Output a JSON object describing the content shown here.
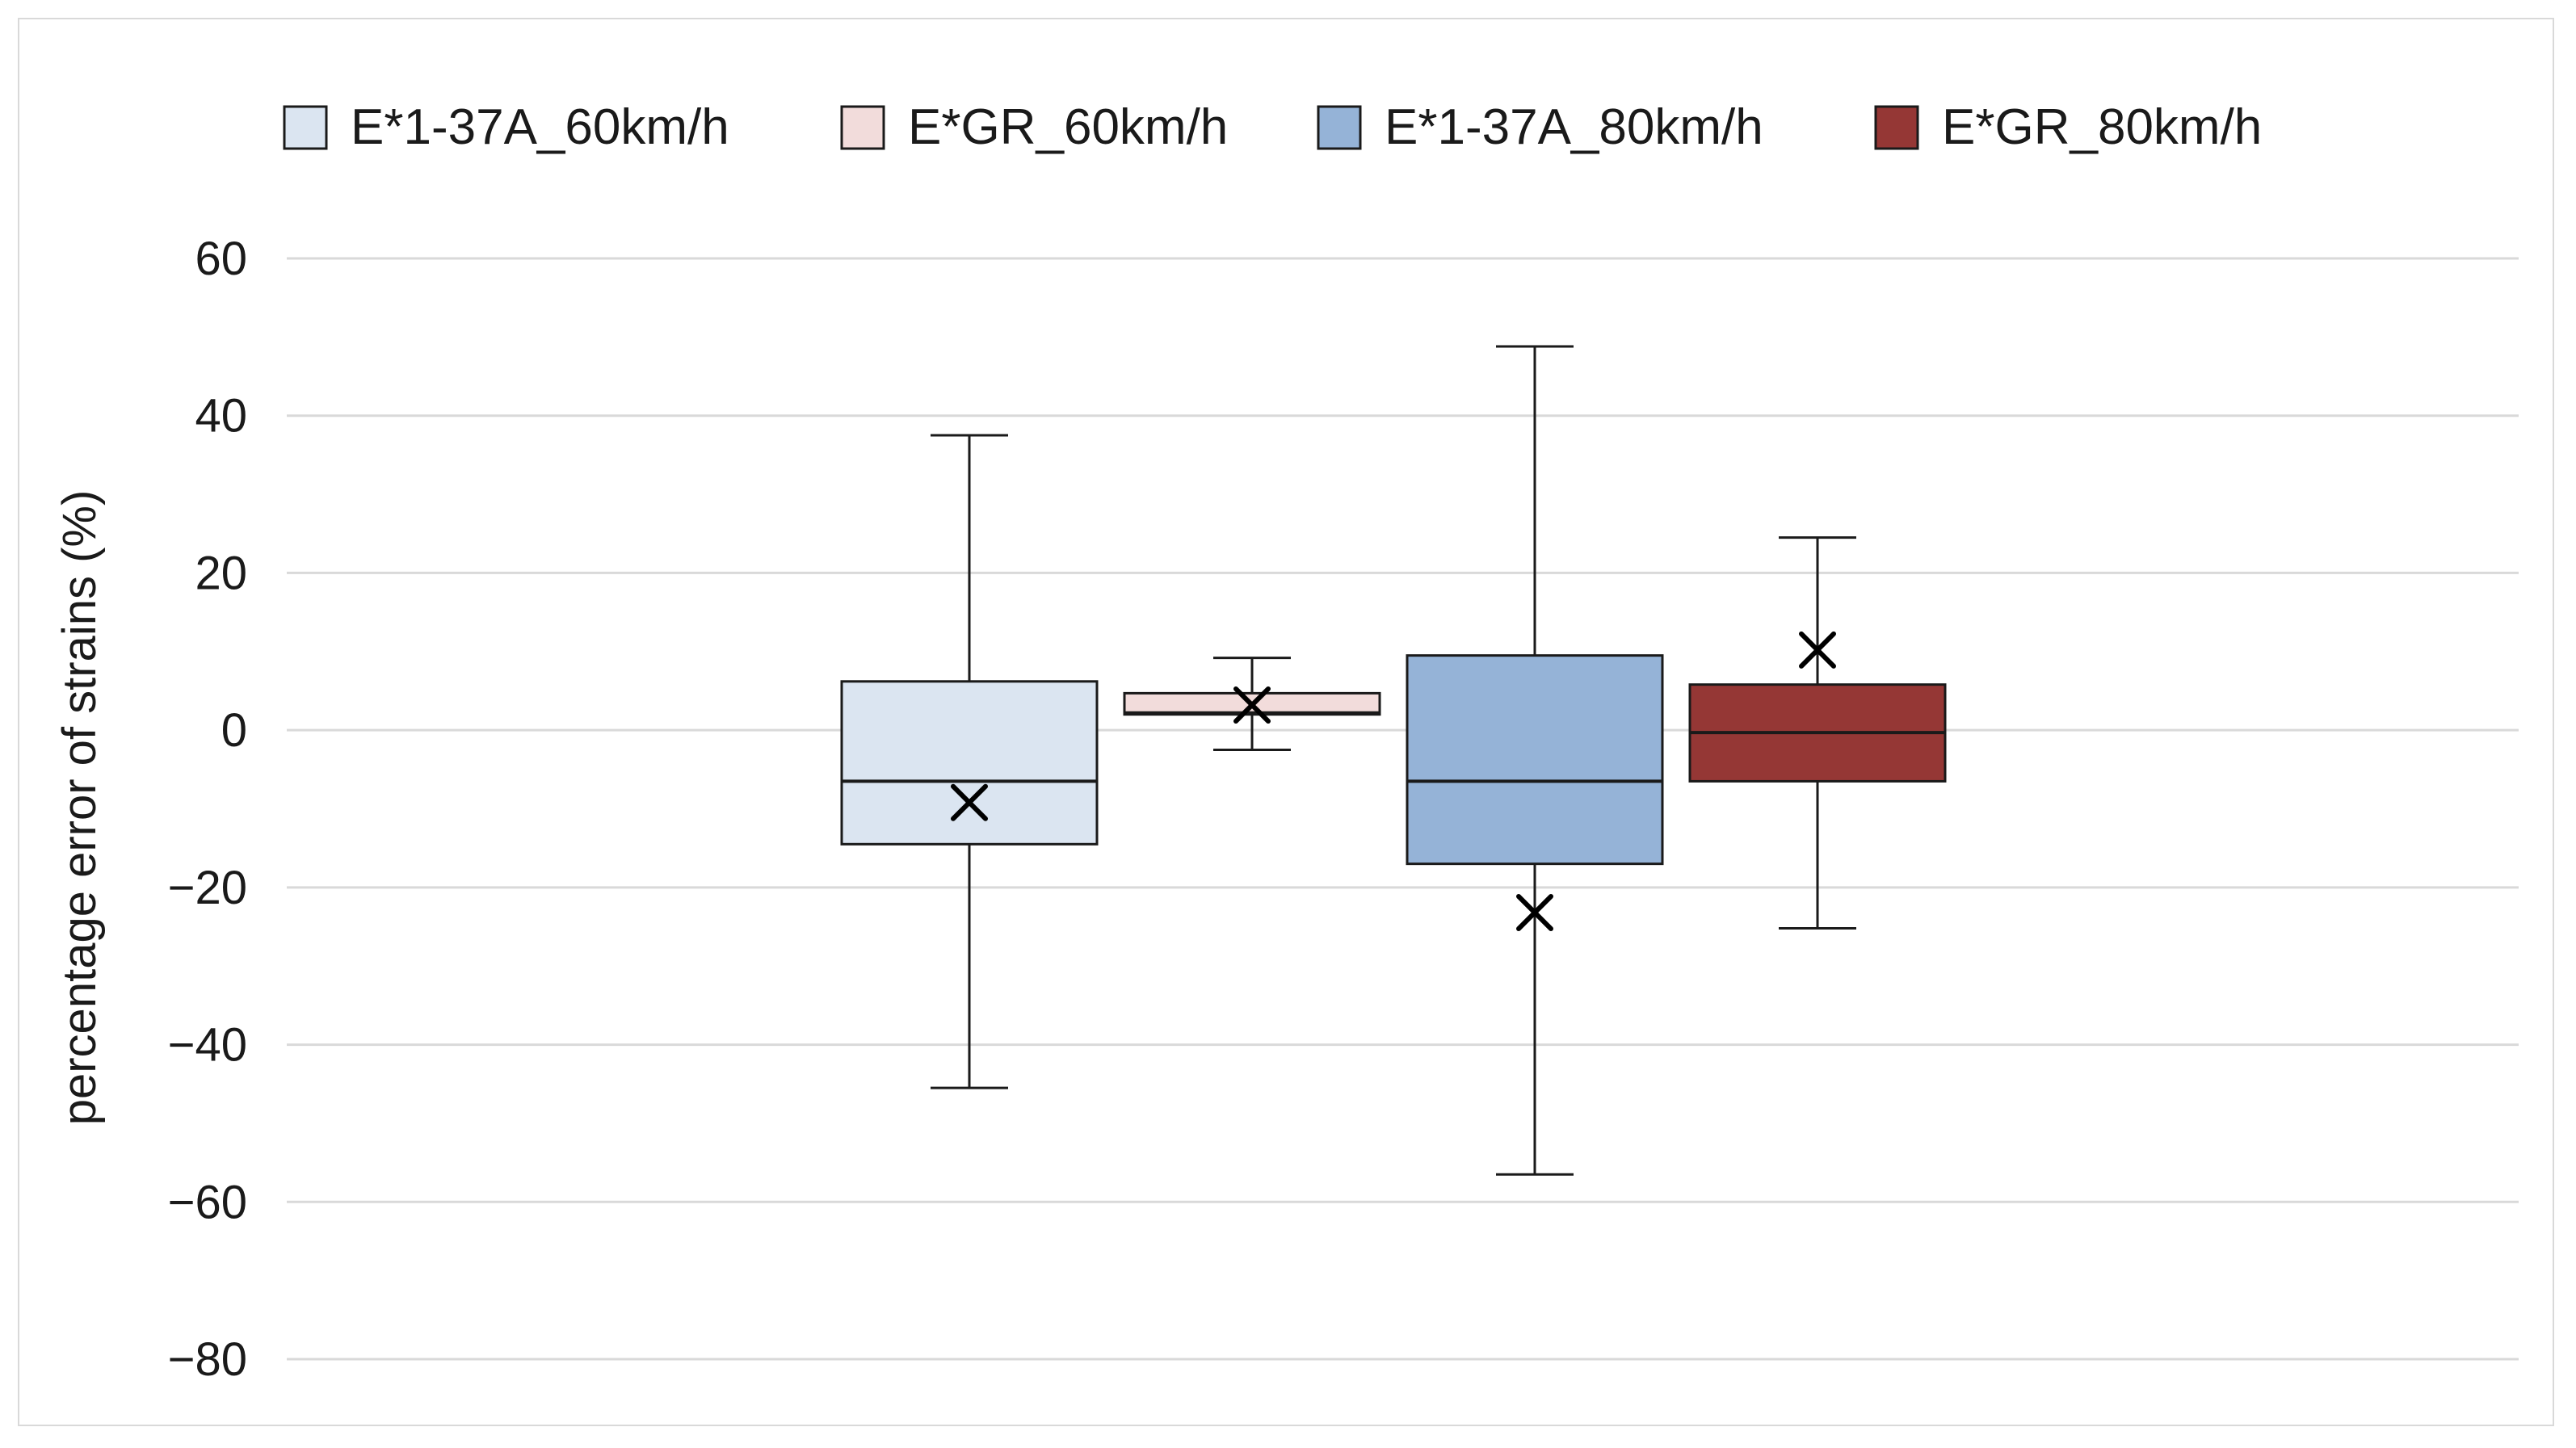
{
  "chart_data": {
    "type": "box",
    "ylabel": "percentage error of strains (%)",
    "ylim": [
      -80,
      60
    ],
    "yticks": [
      60,
      40,
      20,
      0,
      -20,
      -40,
      -60,
      -80
    ],
    "ytick_labels": [
      "60",
      "40",
      "20",
      "0",
      "−20",
      "−40",
      "−60",
      "−80"
    ],
    "grid": true,
    "legend_position": "top",
    "series": [
      {
        "name": "E*1-37A_60km/h",
        "color": "#dbe5f1",
        "min": -45.5,
        "q1": -14.5,
        "median": -6.5,
        "q3": 6.2,
        "max": 37.5,
        "mean": -9.2
      },
      {
        "name": "E*GR_60km/h",
        "color": "#f2dcdb",
        "min": -2.5,
        "q1": 2.0,
        "median": 2.2,
        "q3": 4.7,
        "max": 9.2,
        "mean": 3.2
      },
      {
        "name": "E*1-37A_80km/h",
        "color": "#95b3d7",
        "min": -56.5,
        "q1": -17.0,
        "median": -6.5,
        "q3": 9.5,
        "max": 48.8,
        "mean": -23.2
      },
      {
        "name": "E*GR_80km/h",
        "color": "#953735",
        "min": -25.2,
        "q1": -6.5,
        "median": -0.3,
        "q3": 5.8,
        "max": 24.5,
        "mean": 10.2
      }
    ]
  }
}
